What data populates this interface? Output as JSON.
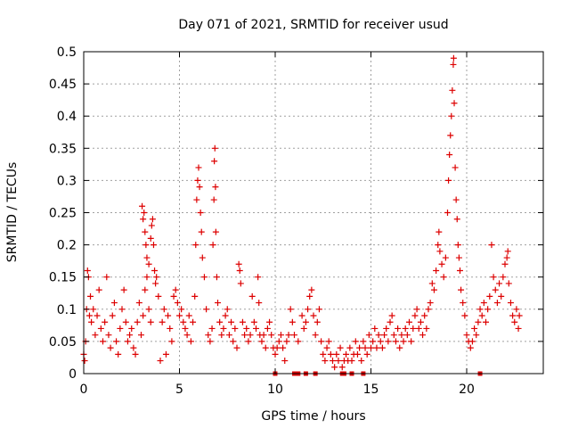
{
  "chart_data": {
    "type": "scatter",
    "title": "Day 071 of 2021, SRMTID for receiver usud",
    "xlabel": "GPS time / hours",
    "ylabel": "SRMTID / TECUs",
    "xlim": [
      0,
      24
    ],
    "ylim": [
      0,
      0.5
    ],
    "xticks": [
      0,
      5,
      10,
      15,
      20
    ],
    "xtick_labels": [
      "0",
      "5",
      "10",
      "15",
      "20"
    ],
    "yticks": [
      0,
      0.05,
      0.1,
      0.15,
      0.2,
      0.25,
      0.3,
      0.35,
      0.4,
      0.45,
      0.5
    ],
    "ytick_labels": [
      "0",
      "0.05",
      "0.1",
      "0.15",
      "0.2",
      "0.25",
      "0.3",
      "0.35",
      "0.4",
      "0.45",
      "0.5"
    ],
    "grid": true,
    "marker": "plus",
    "marker_color": "#dd0000",
    "series": [
      {
        "name": "SRMTID",
        "points": [
          [
            0.0,
            0.03
          ],
          [
            0.05,
            0.02
          ],
          [
            0.1,
            0.05
          ],
          [
            0.15,
            0.1
          ],
          [
            0.2,
            0.16
          ],
          [
            0.25,
            0.15
          ],
          [
            0.3,
            0.09
          ],
          [
            0.35,
            0.12
          ],
          [
            0.4,
            0.08
          ],
          [
            0.5,
            0.1
          ],
          [
            0.6,
            0.06
          ],
          [
            0.7,
            0.09
          ],
          [
            0.8,
            0.13
          ],
          [
            0.9,
            0.07
          ],
          [
            1.0,
            0.05
          ],
          [
            1.1,
            0.08
          ],
          [
            1.2,
            0.15
          ],
          [
            1.3,
            0.06
          ],
          [
            1.4,
            0.04
          ],
          [
            1.5,
            0.09
          ],
          [
            1.6,
            0.11
          ],
          [
            1.7,
            0.05
          ],
          [
            1.8,
            0.03
          ],
          [
            1.9,
            0.07
          ],
          [
            2.0,
            0.1
          ],
          [
            2.1,
            0.13
          ],
          [
            2.2,
            0.08
          ],
          [
            2.3,
            0.05
          ],
          [
            2.4,
            0.06
          ],
          [
            2.5,
            0.07
          ],
          [
            2.6,
            0.04
          ],
          [
            2.7,
            0.03
          ],
          [
            2.8,
            0.08
          ],
          [
            2.9,
            0.11
          ],
          [
            3.0,
            0.06
          ],
          [
            3.1,
            0.09
          ],
          [
            3.2,
            0.13
          ],
          [
            3.3,
            0.15
          ],
          [
            3.4,
            0.1
          ],
          [
            3.5,
            0.08
          ],
          [
            3.05,
            0.26
          ],
          [
            3.1,
            0.24
          ],
          [
            3.15,
            0.25
          ],
          [
            3.2,
            0.22
          ],
          [
            3.25,
            0.2
          ],
          [
            3.3,
            0.18
          ],
          [
            3.4,
            0.17
          ],
          [
            3.5,
            0.21
          ],
          [
            3.55,
            0.23
          ],
          [
            3.6,
            0.24
          ],
          [
            3.65,
            0.2
          ],
          [
            3.7,
            0.16
          ],
          [
            3.75,
            0.14
          ],
          [
            3.8,
            0.15
          ],
          [
            3.9,
            0.12
          ],
          [
            4.0,
            0.02
          ],
          [
            4.1,
            0.08
          ],
          [
            4.2,
            0.1
          ],
          [
            4.3,
            0.03
          ],
          [
            4.4,
            0.09
          ],
          [
            4.5,
            0.07
          ],
          [
            4.6,
            0.05
          ],
          [
            4.7,
            0.12
          ],
          [
            4.8,
            0.13
          ],
          [
            4.9,
            0.11
          ],
          [
            5.0,
            0.09
          ],
          [
            5.1,
            0.1
          ],
          [
            5.2,
            0.08
          ],
          [
            5.3,
            0.07
          ],
          [
            5.4,
            0.06
          ],
          [
            5.5,
            0.09
          ],
          [
            5.6,
            0.05
          ],
          [
            5.7,
            0.08
          ],
          [
            5.8,
            0.12
          ],
          [
            5.85,
            0.2
          ],
          [
            5.9,
            0.27
          ],
          [
            5.95,
            0.3
          ],
          [
            6.0,
            0.32
          ],
          [
            6.05,
            0.29
          ],
          [
            6.1,
            0.25
          ],
          [
            6.15,
            0.22
          ],
          [
            6.2,
            0.18
          ],
          [
            6.3,
            0.15
          ],
          [
            6.4,
            0.1
          ],
          [
            6.5,
            0.06
          ],
          [
            6.6,
            0.05
          ],
          [
            6.7,
            0.07
          ],
          [
            6.75,
            0.2
          ],
          [
            6.8,
            0.27
          ],
          [
            6.82,
            0.33
          ],
          [
            6.85,
            0.35
          ],
          [
            6.88,
            0.29
          ],
          [
            6.9,
            0.22
          ],
          [
            6.95,
            0.15
          ],
          [
            7.0,
            0.11
          ],
          [
            7.1,
            0.08
          ],
          [
            7.2,
            0.06
          ],
          [
            7.3,
            0.07
          ],
          [
            7.4,
            0.09
          ],
          [
            7.5,
            0.1
          ],
          [
            7.6,
            0.06
          ],
          [
            7.7,
            0.08
          ],
          [
            7.8,
            0.05
          ],
          [
            7.9,
            0.07
          ],
          [
            8.0,
            0.04
          ],
          [
            8.1,
            0.17
          ],
          [
            8.15,
            0.16
          ],
          [
            8.2,
            0.14
          ],
          [
            8.3,
            0.08
          ],
          [
            8.4,
            0.06
          ],
          [
            8.5,
            0.07
          ],
          [
            8.6,
            0.05
          ],
          [
            8.7,
            0.06
          ],
          [
            8.8,
            0.12
          ],
          [
            8.9,
            0.08
          ],
          [
            9.0,
            0.07
          ],
          [
            9.1,
            0.15
          ],
          [
            9.15,
            0.11
          ],
          [
            9.2,
            0.06
          ],
          [
            9.3,
            0.05
          ],
          [
            9.4,
            0.06
          ],
          [
            9.5,
            0.04
          ],
          [
            9.6,
            0.07
          ],
          [
            9.7,
            0.08
          ],
          [
            9.8,
            0.06
          ],
          [
            9.9,
            0.04
          ],
          [
            10.0,
            0.03
          ],
          [
            10.1,
            0.04
          ],
          [
            10.2,
            0.05
          ],
          [
            10.3,
            0.06
          ],
          [
            10.4,
            0.04
          ],
          [
            10.5,
            0.02
          ],
          [
            10.6,
            0.05
          ],
          [
            10.7,
            0.06
          ],
          [
            10.8,
            0.1
          ],
          [
            10.9,
            0.08
          ],
          [
            11.0,
            0.06
          ],
          [
            11.2,
            0.05
          ],
          [
            11.4,
            0.09
          ],
          [
            11.5,
            0.07
          ],
          [
            11.6,
            0.08
          ],
          [
            11.7,
            0.1
          ],
          [
            11.8,
            0.12
          ],
          [
            11.9,
            0.13
          ],
          [
            12.0,
            0.09
          ],
          [
            12.1,
            0.06
          ],
          [
            12.2,
            0.08
          ],
          [
            12.3,
            0.1
          ],
          [
            12.4,
            0.05
          ],
          [
            12.5,
            0.03
          ],
          [
            12.6,
            0.02
          ],
          [
            12.7,
            0.04
          ],
          [
            12.8,
            0.05
          ],
          [
            12.9,
            0.03
          ],
          [
            13.0,
            0.02
          ],
          [
            13.1,
            0.01
          ],
          [
            13.2,
            0.03
          ],
          [
            13.3,
            0.02
          ],
          [
            13.4,
            0.04
          ],
          [
            13.5,
            0.01
          ],
          [
            13.6,
            0.02
          ],
          [
            13.7,
            0.03
          ],
          [
            13.8,
            0.02
          ],
          [
            13.9,
            0.04
          ],
          [
            14.0,
            0.02
          ],
          [
            14.1,
            0.03
          ],
          [
            14.2,
            0.05
          ],
          [
            14.3,
            0.03
          ],
          [
            14.4,
            0.04
          ],
          [
            14.5,
            0.02
          ],
          [
            14.6,
            0.05
          ],
          [
            14.7,
            0.04
          ],
          [
            14.8,
            0.03
          ],
          [
            14.9,
            0.06
          ],
          [
            15.0,
            0.04
          ],
          [
            15.1,
            0.05
          ],
          [
            15.2,
            0.07
          ],
          [
            15.3,
            0.04
          ],
          [
            15.4,
            0.06
          ],
          [
            15.5,
            0.05
          ],
          [
            15.6,
            0.04
          ],
          [
            15.7,
            0.06
          ],
          [
            15.8,
            0.07
          ],
          [
            15.9,
            0.05
          ],
          [
            16.0,
            0.08
          ],
          [
            16.1,
            0.09
          ],
          [
            16.2,
            0.06
          ],
          [
            16.3,
            0.05
          ],
          [
            16.4,
            0.07
          ],
          [
            16.5,
            0.04
          ],
          [
            16.6,
            0.06
          ],
          [
            16.7,
            0.05
          ],
          [
            16.8,
            0.07
          ],
          [
            16.9,
            0.06
          ],
          [
            17.0,
            0.08
          ],
          [
            17.1,
            0.05
          ],
          [
            17.2,
            0.07
          ],
          [
            17.3,
            0.09
          ],
          [
            17.4,
            0.1
          ],
          [
            17.5,
            0.07
          ],
          [
            17.6,
            0.08
          ],
          [
            17.7,
            0.06
          ],
          [
            17.8,
            0.09
          ],
          [
            17.9,
            0.07
          ],
          [
            18.0,
            0.1
          ],
          [
            18.1,
            0.11
          ],
          [
            18.2,
            0.14
          ],
          [
            18.3,
            0.13
          ],
          [
            18.4,
            0.16
          ],
          [
            18.5,
            0.2
          ],
          [
            18.55,
            0.22
          ],
          [
            18.6,
            0.19
          ],
          [
            18.7,
            0.17
          ],
          [
            18.8,
            0.15
          ],
          [
            18.9,
            0.18
          ],
          [
            19.0,
            0.25
          ],
          [
            19.05,
            0.3
          ],
          [
            19.1,
            0.34
          ],
          [
            19.15,
            0.37
          ],
          [
            19.2,
            0.4
          ],
          [
            19.25,
            0.44
          ],
          [
            19.3,
            0.48
          ],
          [
            19.32,
            0.49
          ],
          [
            19.35,
            0.42
          ],
          [
            19.4,
            0.32
          ],
          [
            19.45,
            0.27
          ],
          [
            19.5,
            0.24
          ],
          [
            19.55,
            0.2
          ],
          [
            19.6,
            0.18
          ],
          [
            19.65,
            0.16
          ],
          [
            19.7,
            0.13
          ],
          [
            19.8,
            0.11
          ],
          [
            19.9,
            0.09
          ],
          [
            20.0,
            0.06
          ],
          [
            20.1,
            0.05
          ],
          [
            20.2,
            0.04
          ],
          [
            20.3,
            0.05
          ],
          [
            20.4,
            0.07
          ],
          [
            20.5,
            0.06
          ],
          [
            20.6,
            0.08
          ],
          [
            20.7,
            0.1
          ],
          [
            20.8,
            0.09
          ],
          [
            20.9,
            0.11
          ],
          [
            21.0,
            0.08
          ],
          [
            21.1,
            0.1
          ],
          [
            21.2,
            0.12
          ],
          [
            21.3,
            0.2
          ],
          [
            21.4,
            0.15
          ],
          [
            21.5,
            0.13
          ],
          [
            21.6,
            0.11
          ],
          [
            21.7,
            0.14
          ],
          [
            21.8,
            0.12
          ],
          [
            21.9,
            0.15
          ],
          [
            22.0,
            0.17
          ],
          [
            22.1,
            0.18
          ],
          [
            22.15,
            0.19
          ],
          [
            22.2,
            0.14
          ],
          [
            22.3,
            0.11
          ],
          [
            22.4,
            0.09
          ],
          [
            22.5,
            0.08
          ],
          [
            22.6,
            0.1
          ],
          [
            22.7,
            0.07
          ],
          [
            22.75,
            0.09
          ]
        ]
      }
    ],
    "zero_markers": [
      10.0,
      11.0,
      11.2,
      11.6,
      12.1,
      13.5,
      13.6,
      14.0,
      14.6,
      20.7
    ]
  }
}
